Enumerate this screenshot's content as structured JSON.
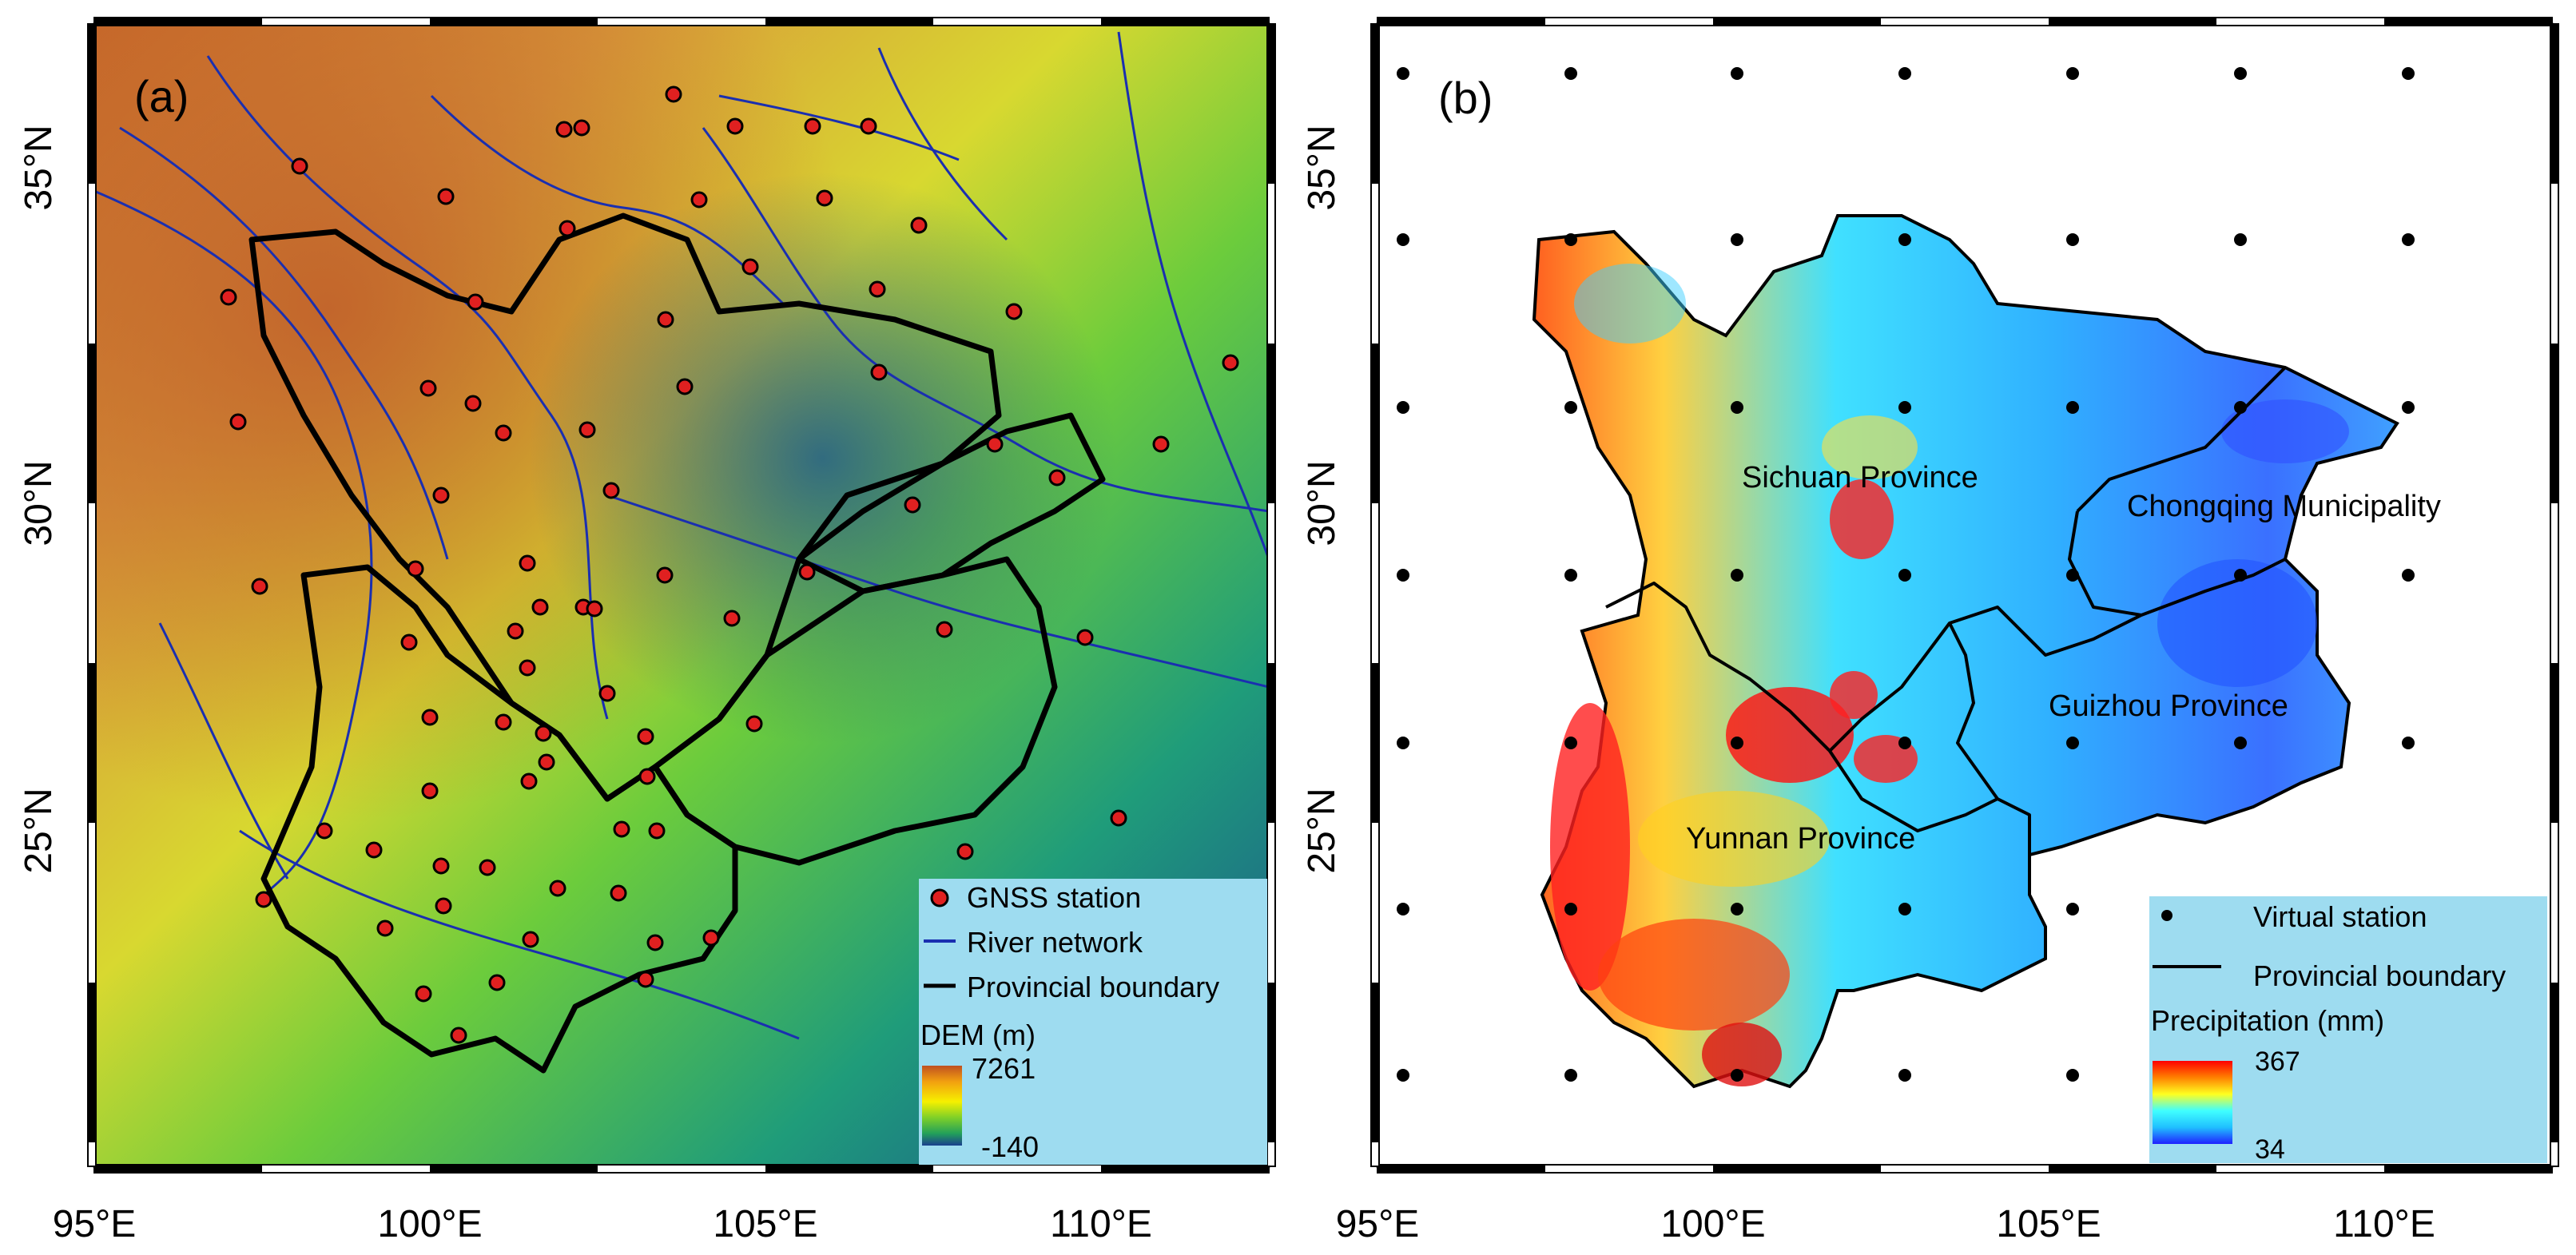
{
  "panels": [
    {
      "id": "a",
      "label": "(a)",
      "legend": {
        "items": [
          "GNSS station",
          "River network",
          "Provincial boundary"
        ],
        "colorbar_title": "DEM (m)",
        "colorbar_max": "7261",
        "colorbar_min": "-140",
        "colorbar_colors": [
          "#1a3f8f",
          "#22a05a",
          "#7fd028",
          "#f6f000",
          "#f2a010",
          "#c05020"
        ]
      },
      "axes": {
        "x_ticks": [
          "95°E",
          "100°E",
          "105°E",
          "110°E"
        ],
        "y_ticks": [
          "35°N",
          "30°N",
          "25°N"
        ],
        "lon_range": [
          95,
          112.8
        ],
        "lat_range": [
          20.6,
          37.2
        ]
      }
    },
    {
      "id": "b",
      "label": "(b)",
      "region_labels": [
        "Sichuan Province",
        "Chongqing Municipality",
        "Guizhou Province",
        "Yunnan Province"
      ],
      "legend": {
        "items": [
          "Virtual station",
          "Provincial boundary"
        ],
        "colorbar_title": "Precipitation (mm)",
        "colorbar_max": "367",
        "colorbar_min": "34",
        "colorbar_colors": [
          "#2020ff",
          "#20c0ff",
          "#40ffff",
          "#ffff20",
          "#ff8000",
          "#ff0000"
        ]
      },
      "axes": {
        "x_ticks": [
          "95°E",
          "100°E",
          "105°E",
          "110°E"
        ],
        "y_ticks": [
          "35°N",
          "30°N",
          "25°N"
        ],
        "lon_range": [
          95,
          112.8
        ],
        "lat_range": [
          20.6,
          37.2
        ]
      }
    }
  ],
  "colors": {
    "station_fill": "#e02020",
    "river": "#1a2fb0",
    "boundary": "#000000",
    "legend_bg": "#9edcf0"
  }
}
